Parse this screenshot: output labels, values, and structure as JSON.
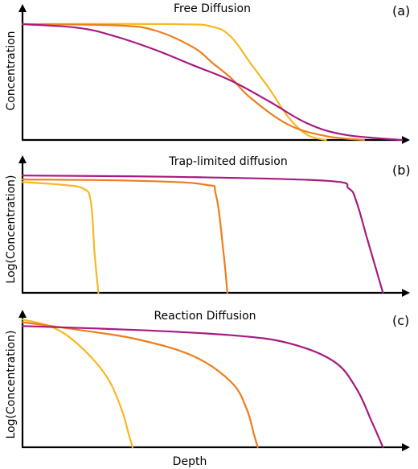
{
  "colors": {
    "yellow": "#f6b824",
    "orange": "#ee7d1b",
    "magenta": "#a61a7f",
    "axis": "#000000"
  },
  "panels": [
    {
      "title": "Free Diffusion",
      "label": "(a)",
      "ylabel": "Concentration",
      "xlabel": "",
      "chart_ref": 0
    },
    {
      "title": "Trap-limited diffusion",
      "label": "(b)",
      "ylabel": "Log(Concentration)",
      "xlabel": "",
      "chart_ref": 1
    },
    {
      "title": "Reaction Diffusion",
      "label": "(c)",
      "ylabel": "Log(Concentration)",
      "xlabel": "Depth",
      "chart_ref": 2
    }
  ],
  "chart_data": [
    {
      "type": "line",
      "title": "Free Diffusion",
      "xlabel": "",
      "ylabel": "Concentration",
      "xlim": [
        0,
        1
      ],
      "ylim": [
        0,
        1
      ],
      "grid": false,
      "series": [
        {
          "color": "#f6b824",
          "x": [
            0,
            0.4,
            0.5,
            0.55,
            0.6,
            0.65,
            0.7,
            0.75,
            0.8
          ],
          "y": [
            0.9,
            0.9,
            0.88,
            0.8,
            0.6,
            0.4,
            0.18,
            0.04,
            0
          ]
        },
        {
          "color": "#ee7d1b",
          "x": [
            0,
            0.25,
            0.35,
            0.45,
            0.5,
            0.55,
            0.6,
            0.7,
            0.8,
            0.9
          ],
          "y": [
            0.9,
            0.89,
            0.85,
            0.72,
            0.6,
            0.48,
            0.33,
            0.12,
            0.03,
            0
          ]
        },
        {
          "color": "#a61a7f",
          "x": [
            0,
            0.15,
            0.25,
            0.35,
            0.45,
            0.55,
            0.65,
            0.75,
            0.85,
            1.0
          ],
          "y": [
            0.9,
            0.87,
            0.8,
            0.7,
            0.58,
            0.46,
            0.3,
            0.13,
            0.04,
            0
          ]
        }
      ]
    },
    {
      "type": "line",
      "title": "Trap-limited diffusion",
      "xlabel": "",
      "ylabel": "Log(Concentration)",
      "xlim": [
        0,
        1
      ],
      "ylim": [
        0,
        1
      ],
      "grid": false,
      "series": [
        {
          "color": "#f6b824",
          "x": [
            0,
            0.1,
            0.16,
            0.18,
            0.19,
            0.2
          ],
          "y": [
            0.85,
            0.83,
            0.8,
            0.7,
            0.3,
            0
          ]
        },
        {
          "color": "#ee7d1b",
          "x": [
            0,
            0.3,
            0.48,
            0.51,
            0.53,
            0.54
          ],
          "y": [
            0.87,
            0.86,
            0.83,
            0.75,
            0.3,
            0
          ]
        },
        {
          "color": "#a61a7f",
          "x": [
            0,
            0.4,
            0.8,
            0.86,
            0.88,
            0.91,
            0.95
          ],
          "y": [
            0.9,
            0.89,
            0.86,
            0.8,
            0.7,
            0.4,
            0
          ]
        }
      ]
    },
    {
      "type": "line",
      "title": "Reaction Diffusion",
      "xlabel": "Depth",
      "ylabel": "Log(Concentration)",
      "xlim": [
        0,
        1
      ],
      "ylim": [
        0,
        1
      ],
      "grid": false,
      "series": [
        {
          "color": "#f6b824",
          "x": [
            0,
            0.08,
            0.15,
            0.22,
            0.26,
            0.28,
            0.29
          ],
          "y": [
            0.98,
            0.92,
            0.78,
            0.55,
            0.3,
            0.1,
            0
          ]
        },
        {
          "color": "#ee7d1b",
          "x": [
            0,
            0.15,
            0.3,
            0.45,
            0.55,
            0.59,
            0.61,
            0.62
          ],
          "y": [
            0.96,
            0.9,
            0.83,
            0.7,
            0.5,
            0.3,
            0.1,
            0
          ]
        },
        {
          "color": "#a61a7f",
          "x": [
            0,
            0.3,
            0.55,
            0.7,
            0.82,
            0.88,
            0.92,
            0.95
          ],
          "y": [
            0.93,
            0.9,
            0.86,
            0.8,
            0.66,
            0.45,
            0.2,
            0
          ]
        }
      ]
    }
  ]
}
